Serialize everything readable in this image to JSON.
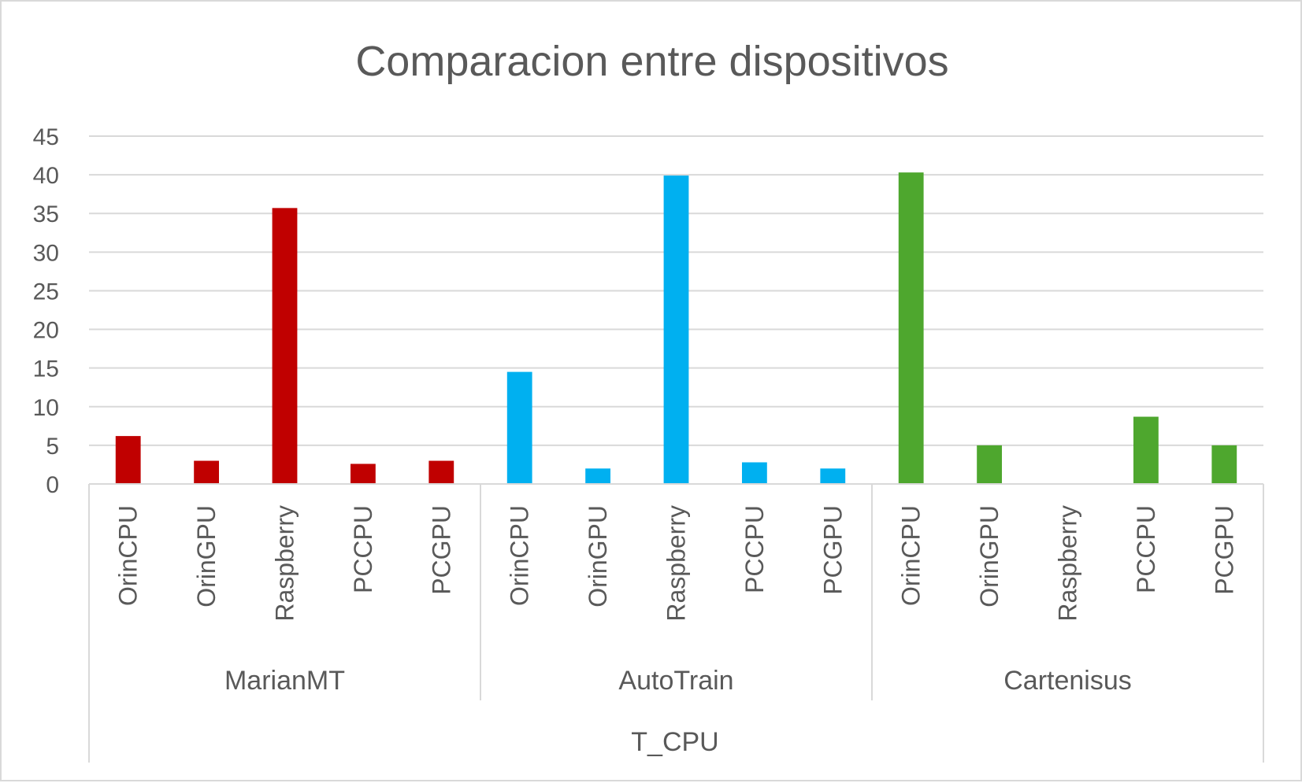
{
  "chart_data": {
    "type": "bar",
    "title": "Comparacion entre dispositivos",
    "outer_category": "T_CPU",
    "ylim": [
      0,
      45
    ],
    "yticks": [
      0,
      5,
      10,
      15,
      20,
      25,
      30,
      35,
      40,
      45
    ],
    "grid": true,
    "legend": "none",
    "groups": [
      {
        "name": "MarianMT",
        "color": "#c00000",
        "categories": [
          "OrinCPU",
          "OrinGPU",
          "Raspberry",
          "PCCPU",
          "PCGPU"
        ],
        "values": [
          6.2,
          3.0,
          35.7,
          2.6,
          3.0
        ]
      },
      {
        "name": "AutoTrain",
        "color": "#00b0f0",
        "categories": [
          "OrinCPU",
          "OrinGPU",
          "Raspberry",
          "PCCPU",
          "PCGPU"
        ],
        "values": [
          14.5,
          2.0,
          39.9,
          2.8,
          2.0
        ]
      },
      {
        "name": "Cartenisus",
        "color": "#4ea72e",
        "categories": [
          "OrinCPU",
          "OrinGPU",
          "Raspberry",
          "PCCPU",
          "PCGPU"
        ],
        "values": [
          40.3,
          5.0,
          0,
          8.7,
          5.0
        ]
      }
    ]
  }
}
